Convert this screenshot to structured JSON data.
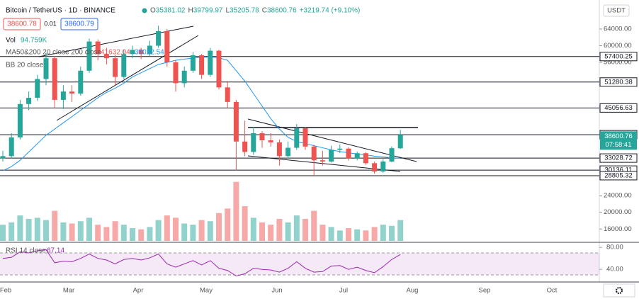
{
  "header": {
    "symbol": "Bitcoin / TetherUS · 1D · BINANCE",
    "ohlc": [
      {
        "label": "O",
        "value": 35381.02
      },
      {
        "label": "H",
        "value": 39799.97
      },
      {
        "label": "L",
        "value": 35205.78
      },
      {
        "label": "C",
        "value": 38600.76
      }
    ],
    "change": "+3219.74 (+9.10%)",
    "sell": 38600.78,
    "spread": 0.01,
    "buy": 38600.79,
    "vol_label": "Vol",
    "vol": "94.759K",
    "ma_label": "MA50&200 20 close 200 close",
    "ma_values": [
      41632.04,
      33022.54
    ],
    "bb_label": "BB 20 close",
    "currency": "USDT"
  },
  "chart_data": {
    "type": "candlestick",
    "ylim": [
      13150,
      70970
    ],
    "yticks": [
      {
        "value": 64000,
        "label": "64000.00"
      },
      {
        "value": 60000,
        "label": "60000.00"
      },
      {
        "value": 56000,
        "label": "56000.00"
      },
      {
        "value": 24000,
        "label": "24000.00"
      },
      {
        "value": 20000,
        "label": "20000.00"
      },
      {
        "value": 16000,
        "label": "16000.00"
      }
    ],
    "levels": [
      57400.25,
      51280.38,
      45056.63,
      38636.04,
      33028.72,
      30136.11,
      28805.32
    ],
    "last_price": 38600.76,
    "countdown": "07:58:41",
    "up_color": "#26a69a",
    "down_color": "#ef5350",
    "ma_color": "#2196f3",
    "candles": [
      [
        33000,
        34800,
        32200,
        33500
      ],
      [
        33500,
        39000,
        33000,
        38000
      ],
      [
        38000,
        47000,
        37500,
        46000
      ],
      [
        46000,
        49000,
        44500,
        47500
      ],
      [
        47500,
        53000,
        46800,
        52000
      ],
      [
        52000,
        58300,
        50500,
        57000
      ],
      [
        57000,
        57500,
        45000,
        47000
      ],
      [
        47000,
        50500,
        44800,
        49000
      ],
      [
        49000,
        50500,
        46500,
        48500
      ],
      [
        48500,
        55000,
        48000,
        54000
      ],
      [
        54000,
        61700,
        53500,
        61000
      ],
      [
        61000,
        61500,
        56500,
        58000
      ],
      [
        58000,
        59500,
        55500,
        57000
      ],
      [
        57000,
        57800,
        50500,
        52500
      ],
      [
        52500,
        59000,
        52000,
        58000
      ],
      [
        58000,
        60000,
        57000,
        59000
      ],
      [
        59000,
        59500,
        56800,
        58000
      ],
      [
        58000,
        61200,
        57500,
        60000
      ],
      [
        60000,
        64800,
        59500,
        63500
      ],
      [
        63500,
        64000,
        55000,
        56000
      ],
      [
        56000,
        56500,
        49000,
        51000
      ],
      [
        51000,
        55000,
        50000,
        54000
      ],
      [
        54000,
        58500,
        53500,
        57700
      ],
      [
        57700,
        58000,
        52000,
        53000
      ],
      [
        53000,
        59500,
        52500,
        58800
      ],
      [
        58800,
        59000,
        49500,
        50000
      ],
      [
        50000,
        51500,
        45000,
        46500
      ],
      [
        46500,
        47000,
        30100,
        37000
      ],
      [
        37000,
        42000,
        33500,
        34500
      ],
      [
        34500,
        40500,
        33800,
        39000
      ],
      [
        39000,
        39500,
        35500,
        37300
      ],
      [
        37300,
        39000,
        35800,
        36800
      ],
      [
        36800,
        37500,
        31200,
        33500
      ],
      [
        33500,
        37000,
        33000,
        35500
      ],
      [
        35500,
        41200,
        35000,
        40200
      ],
      [
        40200,
        40500,
        35000,
        35800
      ],
      [
        35800,
        36200,
        28800,
        32500
      ],
      [
        32500,
        34800,
        31200,
        32200
      ],
      [
        32200,
        36000,
        32000,
        35000
      ],
      [
        35000,
        36300,
        34200,
        35300
      ],
      [
        35300,
        35600,
        32400,
        32900
      ],
      [
        32900,
        34600,
        32500,
        34200
      ],
      [
        34200,
        34500,
        31400,
        31800
      ],
      [
        31800,
        32200,
        29300,
        29800
      ],
      [
        29800,
        32800,
        29500,
        32200
      ],
      [
        32200,
        35800,
        32000,
        35400
      ],
      [
        35381.02,
        39799.97,
        35205.78,
        38600.76
      ]
    ],
    "ma50": [
      30000,
      31000,
      32500,
      34500,
      36500,
      38500,
      40000,
      41500,
      43000,
      44500,
      46000,
      47500,
      48800,
      49800,
      51000,
      52500,
      53500,
      54500,
      55500,
      56000,
      56500,
      56800,
      57000,
      57200,
      57300,
      57100,
      56500,
      54000,
      51500,
      48500,
      45500,
      42500,
      40000,
      38000,
      37000,
      36500,
      36000,
      35500,
      35000,
      34600,
      34300,
      34000,
      33800,
      33500,
      33300,
      33100,
      33000
    ],
    "volume": [
      70,
      80,
      110,
      95,
      100,
      90,
      130,
      80,
      75,
      85,
      100,
      70,
      60,
      85,
      70,
      55,
      50,
      60,
      90,
      110,
      100,
      75,
      70,
      90,
      85,
      120,
      140,
      255,
      150,
      100,
      80,
      70,
      95,
      80,
      110,
      95,
      130,
      70,
      60,
      45,
      55,
      50,
      45,
      60,
      70,
      65,
      90
    ],
    "vlim": [
      0,
      300
    ],
    "months": [
      "Feb",
      "Mar",
      "Apr",
      "May",
      "Jun",
      "Jul",
      "Aug",
      "Sep",
      "Oct"
    ],
    "rsi_label": "RSI 14 close",
    "rsi_last": 67.14,
    "rsi": [
      60,
      62,
      72,
      70,
      74,
      76,
      52,
      55,
      54,
      60,
      68,
      60,
      57,
      50,
      58,
      60,
      57,
      61,
      68,
      50,
      44,
      50,
      56,
      48,
      56,
      42,
      38,
      28,
      32,
      42,
      40,
      39,
      35,
      42,
      54,
      42,
      35,
      36,
      46,
      47,
      40,
      44,
      38,
      34,
      45,
      58,
      67.14
    ],
    "rsi_ylim": [
      24,
      88
    ],
    "rsi_ticks": [
      {
        "value": 80,
        "label": "80.00"
      },
      {
        "value": 40,
        "label": "40.00"
      }
    ],
    "rsi_band": [
      30,
      70
    ],
    "rsi_color": "#9c27b0"
  }
}
